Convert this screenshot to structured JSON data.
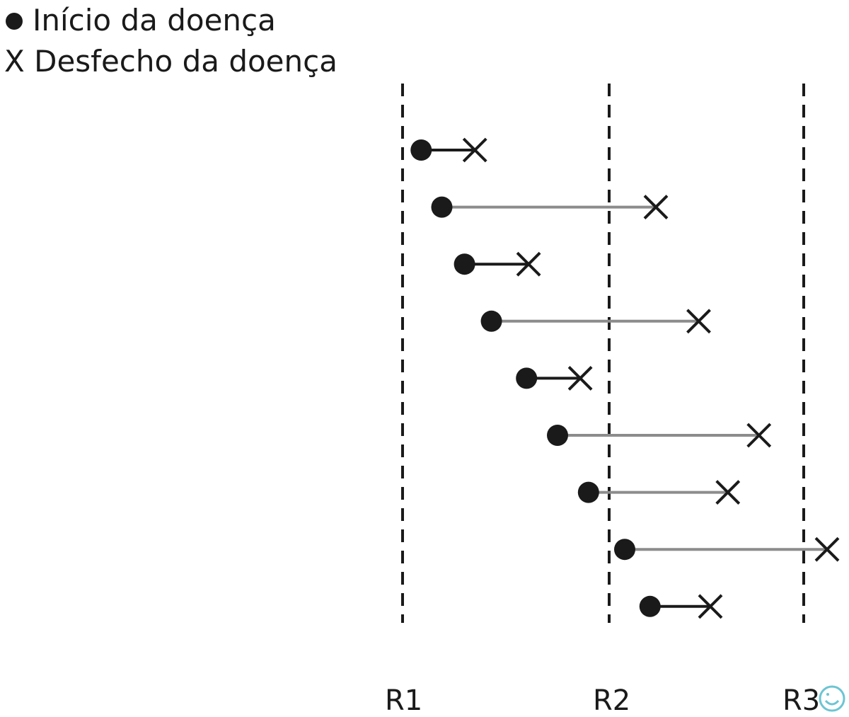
{
  "legend": {
    "onset_label": "Início da doença",
    "outcome_label": "X Desfecho da doença"
  },
  "colors": {
    "ink": "#1a1a1a",
    "long_duration_line": "#8c8c8c",
    "logo_accent": "#6cc5d2"
  },
  "icons": {
    "onset_marker": "filled-circle",
    "outcome_marker": "x-cross",
    "corner_logo": "smiley-logo"
  },
  "reference_points": [
    "R1",
    "R2",
    "R3"
  ],
  "cases": [
    {
      "start": 0.09,
      "end": 0.35,
      "color": "black"
    },
    {
      "start": 0.19,
      "end": 1.24,
      "color": "gray"
    },
    {
      "start": 0.3,
      "end": 0.61,
      "color": "black"
    },
    {
      "start": 0.43,
      "end": 1.46,
      "color": "gray"
    },
    {
      "start": 0.6,
      "end": 0.86,
      "color": "black"
    },
    {
      "start": 0.75,
      "end": 1.77,
      "color": "gray"
    },
    {
      "start": 0.9,
      "end": 1.61,
      "color": "gray"
    },
    {
      "start": 1.08,
      "end": 2.12,
      "color": "gray"
    },
    {
      "start": 1.21,
      "end": 1.52,
      "color": "black"
    }
  ]
}
